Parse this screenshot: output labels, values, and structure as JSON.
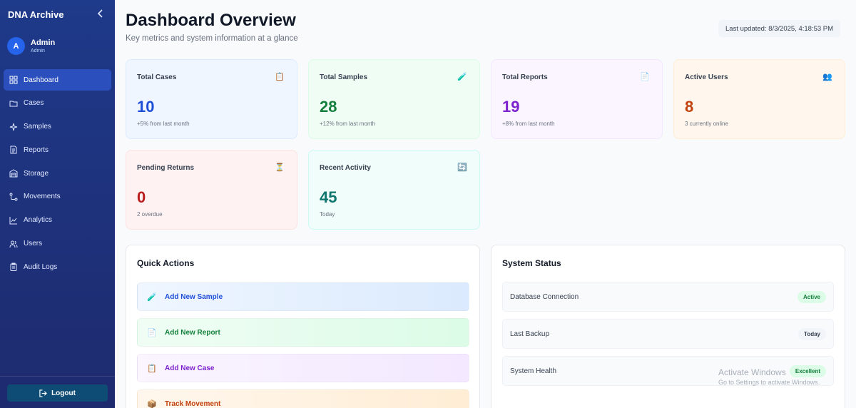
{
  "sidebar": {
    "brand": "DNA Archive",
    "user": {
      "initial": "A",
      "name": "Admin",
      "role": "Admin"
    },
    "items": [
      {
        "label": "Dashboard",
        "icon": "grid-icon",
        "active": true
      },
      {
        "label": "Cases",
        "icon": "folder-icon"
      },
      {
        "label": "Samples",
        "icon": "sparkle-icon"
      },
      {
        "label": "Reports",
        "icon": "document-icon"
      },
      {
        "label": "Storage",
        "icon": "warehouse-icon"
      },
      {
        "label": "Movements",
        "icon": "route-icon"
      },
      {
        "label": "Analytics",
        "icon": "chart-icon"
      },
      {
        "label": "Users",
        "icon": "users-icon"
      },
      {
        "label": "Audit Logs",
        "icon": "clipboard-icon"
      }
    ],
    "logout": "Logout"
  },
  "header": {
    "title": "Dashboard Overview",
    "subtitle": "Key metrics and system information at a glance",
    "last_updated": "Last updated: 8/3/2025, 4:18:53 PM"
  },
  "stats": [
    {
      "label": "Total Cases",
      "value": "10",
      "sub": "+5% from last month",
      "icon": "📋",
      "color": "#1d4ed8",
      "bg": "#eff6ff",
      "border": "#dbeafe"
    },
    {
      "label": "Total Samples",
      "value": "28",
      "sub": "+12% from last month",
      "icon": "🧪",
      "color": "#15803d",
      "bg": "#f0fdf4",
      "border": "#dcfce7"
    },
    {
      "label": "Total Reports",
      "value": "19",
      "sub": "+8% from last month",
      "icon": "📄",
      "color": "#7e22ce",
      "bg": "#faf5ff",
      "border": "#f3e8ff"
    },
    {
      "label": "Active Users",
      "value": "8",
      "sub": "3 currently online",
      "icon": "👥",
      "color": "#c2410c",
      "bg": "#fff7ed",
      "border": "#ffedd5"
    },
    {
      "label": "Pending Returns",
      "value": "0",
      "sub": "2 overdue",
      "icon": "⏳",
      "color": "#b91c1c",
      "bg": "#fef2f2",
      "border": "#fee2e2"
    },
    {
      "label": "Recent Activity",
      "value": "45",
      "sub": "Today",
      "icon": "🔄",
      "color": "#0f766e",
      "bg": "#f0fdfa",
      "border": "#ccfbf1"
    }
  ],
  "quick_actions": {
    "title": "Quick Actions",
    "items": [
      {
        "label": "Add New Sample",
        "icon": "🧪",
        "color": "#1d4ed8",
        "bg": "linear-gradient(90deg,#eff6ff,#dbeafe)"
      },
      {
        "label": "Add New Report",
        "icon": "📄",
        "color": "#15803d",
        "bg": "linear-gradient(90deg,#f0fdf4,#dcfce7)"
      },
      {
        "label": "Add New Case",
        "icon": "📋",
        "color": "#7e22ce",
        "bg": "linear-gradient(90deg,#faf5ff,#f3e8ff)"
      },
      {
        "label": "Track Movement",
        "icon": "📦",
        "color": "#c2410c",
        "bg": "linear-gradient(90deg,#fff7ed,#ffedd5)"
      }
    ]
  },
  "system_status": {
    "title": "System Status",
    "items": [
      {
        "label": "Database Connection",
        "badge": "Active",
        "badge_bg": "#dcfce7",
        "badge_color": "#15803d"
      },
      {
        "label": "Last Backup",
        "badge": "Today",
        "badge_bg": "#f1f5f9",
        "badge_color": "#374151"
      },
      {
        "label": "System Health",
        "badge": "Excellent",
        "badge_bg": "#dcfce7",
        "badge_color": "#15803d"
      }
    ]
  },
  "watermark": {
    "line1": "Activate Windows",
    "line2": "Go to Settings to activate Windows."
  }
}
